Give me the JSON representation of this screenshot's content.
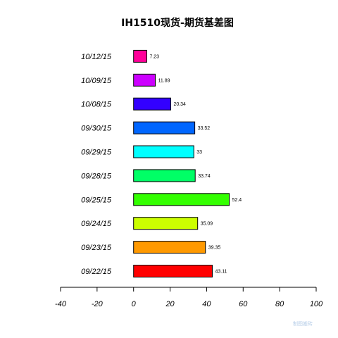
{
  "chart_data": {
    "type": "bar",
    "orientation": "horizontal",
    "title": "IH1510现货-期货基差图",
    "xlabel": "",
    "ylabel": "",
    "categories": [
      "09/22/15",
      "09/23/15",
      "09/24/15",
      "09/25/15",
      "09/28/15",
      "09/29/15",
      "09/30/15",
      "10/08/15",
      "10/09/15",
      "10/12/15"
    ],
    "values": [
      43.11,
      39.35,
      35.09,
      52.4,
      33.74,
      33,
      33.52,
      20.34,
      11.89,
      7.23
    ],
    "value_labels": [
      "43.11",
      "39.35",
      "35.09",
      "52.4",
      "33.74",
      "33",
      "33.52",
      "20.34",
      "11.89",
      "7.23"
    ],
    "colors": [
      "#ff0000",
      "#ff9900",
      "#ccff00",
      "#33ff00",
      "#00ff66",
      "#00ffff",
      "#0066ff",
      "#3300ff",
      "#cc00ff",
      "#ff0099"
    ],
    "xlim": [
      -40,
      100
    ],
    "xticks": [
      -40,
      -20,
      0,
      20,
      40,
      60,
      80,
      100
    ],
    "xtick_labels": [
      "-40",
      "-20",
      "0",
      "20",
      "40",
      "60",
      "80",
      "100"
    ],
    "grid": false,
    "legend": "none"
  },
  "watermark": "制图搬砖"
}
